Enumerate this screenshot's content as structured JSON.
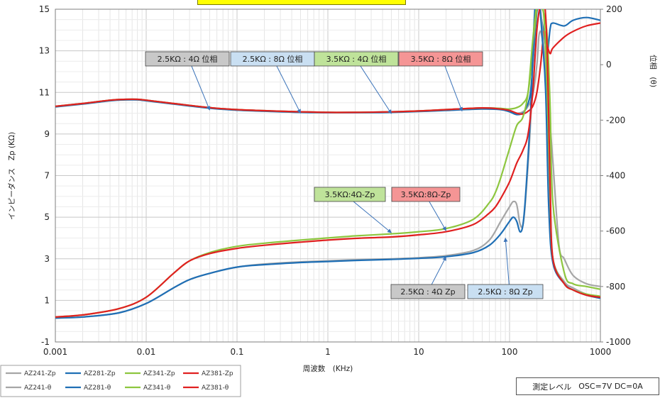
{
  "chart_data": {
    "type": "line",
    "title": "",
    "xlabel": "周波数　(KHz)",
    "ylabel_left": "インピーダンス　Zp (KΩ)",
    "ylabel_right": "位相　(θ)",
    "x_scale": "log",
    "xlim": [
      0.001,
      1000
    ],
    "ylim_left": [
      -1,
      15
    ],
    "ylim_right": [
      -1000,
      200
    ],
    "x_ticks": [
      "0.001",
      "0.01",
      "0.1",
      "1",
      "10",
      "100",
      "1000"
    ],
    "y_left_ticks": [
      "-1",
      "1",
      "3",
      "5",
      "7",
      "9",
      "11",
      "13",
      "15"
    ],
    "y_right_ticks": [
      "-1000",
      "-800",
      "-600",
      "-400",
      "-200",
      "0",
      "200"
    ],
    "grid": true,
    "legend_position": "bottom-left",
    "series": [
      {
        "name": "AZ241-Zp",
        "axis": "left",
        "color": "#a6a6a6",
        "style": "solid",
        "x": [
          0.001,
          0.002,
          0.005,
          0.01,
          0.02,
          0.03,
          0.05,
          0.1,
          0.2,
          0.5,
          1,
          2,
          5,
          10,
          20,
          40,
          60,
          80,
          100,
          110,
          120,
          130,
          140,
          150,
          170,
          190,
          210,
          230,
          250,
          270,
          300,
          400,
          500,
          700,
          1000
        ],
        "y": [
          0.15,
          0.2,
          0.4,
          0.85,
          1.6,
          2.0,
          2.3,
          2.6,
          2.75,
          2.85,
          2.9,
          2.95,
          3.0,
          3.05,
          3.15,
          3.4,
          3.9,
          4.8,
          5.5,
          5.75,
          5.6,
          4.7,
          4.6,
          5.8,
          9.5,
          14.8,
          15.5,
          14.0,
          11.5,
          6.0,
          3.0,
          1.9,
          1.6,
          1.3,
          1.15
        ]
      },
      {
        "name": "AZ281-Zp",
        "axis": "left",
        "color": "#1f6fb5",
        "style": "solid",
        "x": [
          0.001,
          0.002,
          0.005,
          0.01,
          0.02,
          0.03,
          0.05,
          0.1,
          0.2,
          0.5,
          1,
          2,
          5,
          10,
          20,
          40,
          60,
          80,
          100,
          110,
          120,
          130,
          140,
          150,
          170,
          190,
          210,
          230,
          250,
          270,
          300,
          400,
          500,
          700,
          1000
        ],
        "y": [
          0.15,
          0.2,
          0.4,
          0.85,
          1.6,
          2.0,
          2.3,
          2.6,
          2.72,
          2.82,
          2.87,
          2.92,
          2.97,
          3.02,
          3.1,
          3.3,
          3.65,
          4.2,
          4.8,
          5.0,
          4.8,
          4.3,
          4.6,
          6.0,
          10.0,
          15.0,
          15.5,
          13.5,
          11.0,
          5.5,
          2.8,
          1.8,
          1.5,
          1.25,
          1.1
        ]
      },
      {
        "name": "AZ341-Zp",
        "axis": "left",
        "color": "#8dc63f",
        "style": "solid",
        "x": [
          0.001,
          0.002,
          0.005,
          0.01,
          0.02,
          0.03,
          0.05,
          0.1,
          0.2,
          0.5,
          1,
          2,
          5,
          10,
          20,
          40,
          60,
          70,
          80,
          100,
          120,
          140,
          160,
          180,
          200,
          220,
          240,
          260,
          280,
          300,
          400,
          500,
          700,
          1000
        ],
        "y": [
          0.2,
          0.3,
          0.6,
          1.15,
          2.3,
          2.9,
          3.3,
          3.6,
          3.75,
          3.9,
          4.0,
          4.1,
          4.2,
          4.3,
          4.45,
          4.9,
          5.7,
          6.2,
          6.9,
          8.3,
          9.4,
          9.8,
          11.0,
          13.5,
          15.2,
          15.5,
          14.5,
          11.0,
          6.0,
          3.0,
          1.8,
          1.5,
          1.3,
          1.2
        ]
      },
      {
        "name": "AZ381-Zp",
        "axis": "left",
        "color": "#e02020",
        "style": "solid",
        "x": [
          0.001,
          0.002,
          0.005,
          0.01,
          0.02,
          0.03,
          0.05,
          0.1,
          0.2,
          0.5,
          1,
          2,
          5,
          10,
          20,
          40,
          60,
          70,
          80,
          100,
          120,
          140,
          160,
          180,
          200,
          220,
          240,
          260,
          280,
          300,
          400,
          500,
          700,
          1000
        ],
        "y": [
          0.2,
          0.3,
          0.6,
          1.15,
          2.3,
          2.9,
          3.25,
          3.5,
          3.65,
          3.8,
          3.9,
          3.98,
          4.05,
          4.15,
          4.3,
          4.65,
          5.2,
          5.5,
          5.9,
          6.7,
          7.6,
          8.2,
          9.0,
          11.0,
          14.0,
          15.3,
          15.5,
          13.0,
          6.5,
          3.0,
          1.8,
          1.5,
          1.25,
          1.15
        ]
      },
      {
        "name": "AZ241-θ",
        "axis": "right",
        "color": "#a6a6a6",
        "style": "solid",
        "x": [
          0.001,
          0.002,
          0.004,
          0.006,
          0.008,
          0.01,
          0.02,
          0.05,
          0.1,
          0.2,
          0.5,
          1,
          2,
          5,
          10,
          20,
          50,
          80,
          100,
          120,
          140,
          160,
          180,
          200,
          210,
          220,
          230,
          250,
          270,
          300,
          350,
          400,
          500,
          700,
          1000
        ],
        "y": [
          -150,
          -140,
          -128,
          -125,
          -125,
          -128,
          -140,
          -155,
          -162,
          -166,
          -170,
          -172,
          -172,
          -170,
          -167,
          -162,
          -156,
          -158,
          -165,
          -175,
          -170,
          -150,
          -110,
          0,
          100,
          120,
          90,
          0,
          -150,
          -350,
          -650,
          -700,
          -760,
          -790,
          -800
        ]
      },
      {
        "name": "AZ281-θ",
        "axis": "right",
        "color": "#1f6fb5",
        "style": "solid",
        "x": [
          0.001,
          0.002,
          0.004,
          0.006,
          0.008,
          0.01,
          0.02,
          0.05,
          0.1,
          0.2,
          0.5,
          1,
          2,
          5,
          10,
          20,
          50,
          80,
          100,
          120,
          140,
          150,
          170,
          190,
          200,
          210,
          220,
          240,
          260,
          280,
          300,
          400,
          500,
          700,
          1000
        ],
        "y": [
          -152,
          -142,
          -130,
          -127,
          -127,
          -130,
          -142,
          -157,
          -164,
          -168,
          -172,
          -173,
          -173,
          -172,
          -169,
          -165,
          -160,
          -162,
          -170,
          -180,
          -175,
          -160,
          -100,
          100,
          190,
          210,
          180,
          110,
          40,
          130,
          150,
          140,
          160,
          170,
          160
        ]
      },
      {
        "name": "AZ341-θ",
        "axis": "right",
        "color": "#8dc63f",
        "style": "solid",
        "x": [
          0.001,
          0.002,
          0.004,
          0.006,
          0.008,
          0.01,
          0.02,
          0.05,
          0.1,
          0.2,
          0.5,
          1,
          2,
          5,
          10,
          20,
          50,
          80,
          100,
          120,
          140,
          160,
          180,
          200,
          220,
          240,
          260,
          280,
          300,
          400,
          500,
          700,
          1000
        ],
        "y": [
          -150,
          -140,
          -128,
          -125,
          -125,
          -128,
          -140,
          -155,
          -162,
          -166,
          -170,
          -172,
          -172,
          -170,
          -167,
          -162,
          -156,
          -158,
          -160,
          -155,
          -140,
          -100,
          50,
          200,
          210,
          180,
          100,
          -150,
          -500,
          -750,
          -790,
          -800,
          -810
        ]
      },
      {
        "name": "AZ381-θ",
        "axis": "right",
        "color": "#e02020",
        "style": "solid",
        "x": [
          0.001,
          0.002,
          0.004,
          0.006,
          0.008,
          0.01,
          0.02,
          0.05,
          0.1,
          0.2,
          0.5,
          1,
          2,
          5,
          10,
          20,
          50,
          80,
          100,
          120,
          140,
          160,
          180,
          200,
          220,
          240,
          260,
          280,
          300,
          400,
          500,
          700,
          1000
        ],
        "y": [
          -150,
          -140,
          -128,
          -125,
          -125,
          -128,
          -140,
          -155,
          -162,
          -166,
          -170,
          -172,
          -172,
          -170,
          -167,
          -162,
          -156,
          -160,
          -165,
          -175,
          -178,
          -168,
          -150,
          -100,
          0,
          120,
          70,
          40,
          60,
          100,
          120,
          140,
          150
        ]
      }
    ],
    "annotations": [
      {
        "text": "2.5KΩ : 4Ω 位相",
        "bg": "#c8c8c8",
        "x": 0.05,
        "y": 10.15
      },
      {
        "text": "2.5KΩ : 8Ω 位相",
        "bg": "#c9dff2",
        "x": 0.5,
        "y": 10.0
      },
      {
        "text": "3.5KΩ : 4Ω 位相",
        "bg": "#bfe39a",
        "x": 5,
        "y": 9.98
      },
      {
        "text": "3.5KΩ : 8Ω 位相",
        "bg": "#f59595",
        "x": 30,
        "y": 10.1
      },
      {
        "text": "3.5KΩ:4Ω-Zp",
        "bg": "#bfe39a",
        "x": 5,
        "y": 4.25
      },
      {
        "text": "3.5KΩ:8Ω-Zp",
        "bg": "#f59595",
        "x": 20,
        "y": 4.35
      },
      {
        "text": "2.5KΩ : 4Ω Zp",
        "bg": "#c8c8c8",
        "x": 20,
        "y": 3.1
      },
      {
        "text": "2.5KΩ : 8Ω Zp",
        "bg": "#c9dff2",
        "x": 90,
        "y": 4.0
      }
    ]
  },
  "measurement": {
    "label": "測定レベル",
    "value": "OSC=7V  DC=0A"
  }
}
